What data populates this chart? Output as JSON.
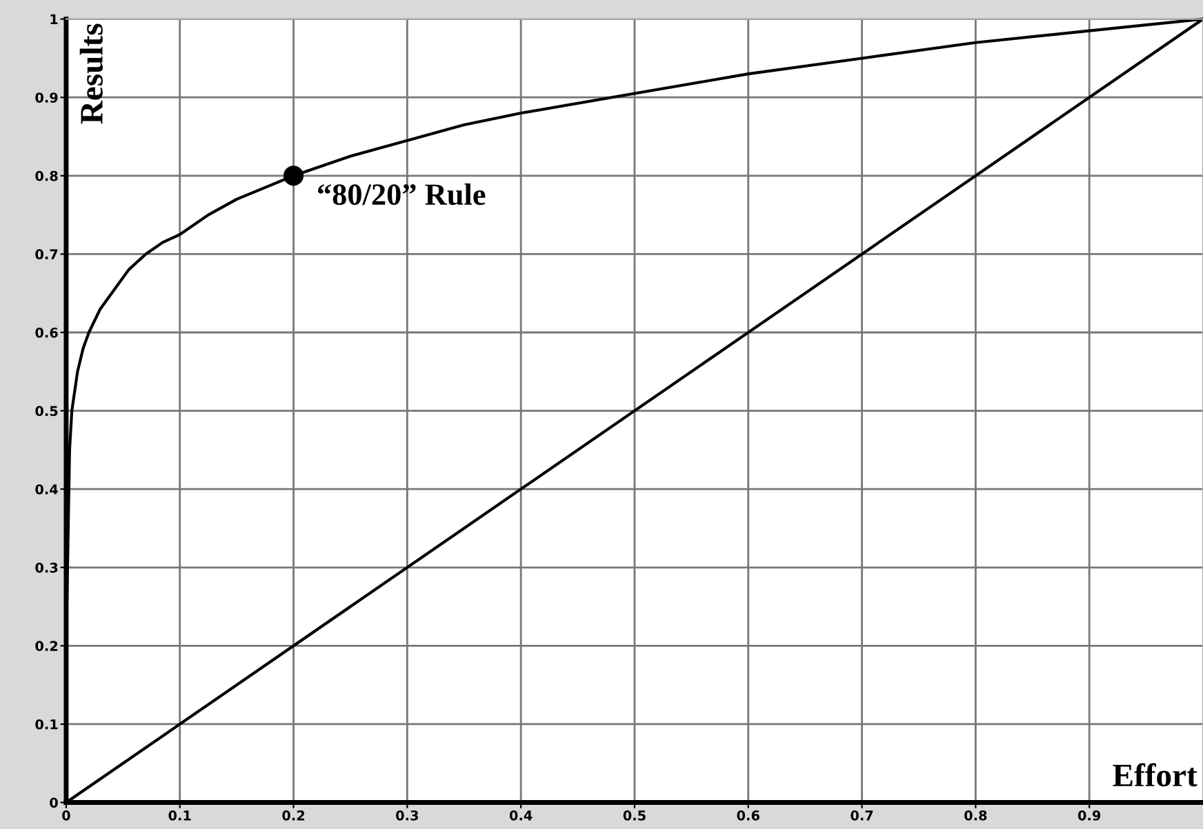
{
  "chart_data": {
    "type": "line",
    "xlabel": "Effort",
    "ylabel": "Results",
    "xlim": [
      0,
      1
    ],
    "ylim": [
      0,
      1
    ],
    "xticks": [
      0,
      0.1,
      0.2,
      0.3,
      0.4,
      0.5,
      0.6,
      0.7,
      0.8,
      0.9
    ],
    "yticks": [
      0,
      0.1,
      0.2,
      0.3,
      0.4,
      0.5,
      0.6,
      0.7,
      0.8,
      0.9,
      1
    ],
    "grid": true,
    "legend": false,
    "series": [
      {
        "color": "#000000",
        "x": [
          0,
          0.003,
          0.005,
          0.01,
          0.015,
          0.02,
          0.03,
          0.04,
          0.055,
          0.07,
          0.085,
          0.1,
          0.125,
          0.15,
          0.175,
          0.2,
          0.25,
          0.3,
          0.35,
          0.4,
          0.5,
          0.6,
          0.7,
          0.8,
          0.9,
          1
        ],
        "values": [
          0.2,
          0.45,
          0.5,
          0.55,
          0.58,
          0.6,
          0.63,
          0.65,
          0.68,
          0.7,
          0.715,
          0.725,
          0.75,
          0.77,
          0.785,
          0.8,
          0.825,
          0.845,
          0.865,
          0.88,
          0.905,
          0.93,
          0.95,
          0.97,
          0.985,
          1
        ]
      },
      {
        "color": "#000000",
        "x": [
          0,
          1
        ],
        "values": [
          0,
          1
        ]
      },
      {
        "type": "scatter",
        "marker": "circle",
        "color": "#000000",
        "x": [
          0.2
        ],
        "values": [
          0.8
        ]
      }
    ],
    "annotations": [
      {
        "text": "“80/20” Rule",
        "x": 0.2,
        "y": 0.8
      }
    ]
  }
}
